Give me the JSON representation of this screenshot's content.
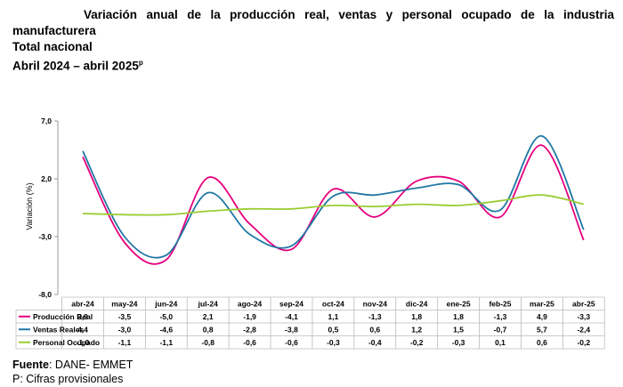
{
  "title": {
    "line1": "Variación anual de la producción real, ventas y personal ocupado de la industria",
    "line2": "manufacturera",
    "line3": "Total nacional",
    "line4": "Abril 2024 – abril 2025",
    "line4_sup": "p"
  },
  "footer": {
    "source_label": "Fuente",
    "source_text": ": DANE- EMMET",
    "note": "P: Cifras provisionales"
  },
  "chart_data": {
    "type": "line",
    "ylabel": "Variación (%)",
    "ylim": [
      -8.0,
      7.0
    ],
    "yticks": [
      "7,0",
      "2,0",
      "-3,0",
      "-8,0"
    ],
    "ytick_values": [
      7.0,
      2.0,
      -3.0,
      -8.0
    ],
    "categories": [
      "abr-24",
      "may-24",
      "jun-24",
      "jul-24",
      "ago-24",
      "sep-24",
      "oct-24",
      "nov-24",
      "dic-24",
      "ene-25",
      "feb-25",
      "mar-25",
      "abr-25"
    ],
    "series": [
      {
        "name": "Producción Real",
        "color": "#e6007e",
        "values": [
          3.9,
          -3.5,
          -5.0,
          2.1,
          -1.9,
          -4.1,
          1.1,
          -1.3,
          1.8,
          1.8,
          -1.3,
          4.9,
          -3.3
        ],
        "labels": [
          "3,9",
          "-3,5",
          "-5,0",
          "2,1",
          "-1,9",
          "-4,1",
          "1,1",
          "-1,3",
          "1,8",
          "1,8",
          "-1,3",
          "4,9",
          "-3,3"
        ]
      },
      {
        "name": "Ventas Reales",
        "color": "#1f77a4",
        "values": [
          4.4,
          -3.0,
          -4.6,
          0.8,
          -2.8,
          -3.8,
          0.5,
          0.6,
          1.2,
          1.5,
          -0.7,
          5.7,
          -2.4
        ],
        "labels": [
          "4,4",
          "-3,0",
          "-4,6",
          "0,8",
          "-2,8",
          "-3,8",
          "0,5",
          "0,6",
          "1,2",
          "1,5",
          "-0,7",
          "5,7",
          "-2,4"
        ]
      },
      {
        "name": "Personal Ocupado",
        "color": "#9acd32",
        "values": [
          -1.0,
          -1.1,
          -1.1,
          -0.8,
          -0.6,
          -0.6,
          -0.3,
          -0.4,
          -0.2,
          -0.3,
          0.1,
          0.6,
          -0.2
        ],
        "labels": [
          "-1,0",
          "-1,1",
          "-1,1",
          "-0,8",
          "-0,6",
          "-0,6",
          "-0,3",
          "-0,4",
          "-0,2",
          "-0,3",
          "0,1",
          "0,6",
          "-0,2"
        ]
      }
    ]
  }
}
